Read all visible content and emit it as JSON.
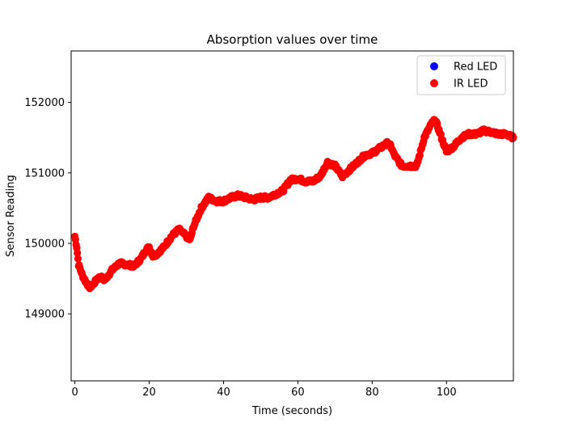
{
  "chart_data": {
    "type": "scatter",
    "title": "Absorption values over time",
    "xlabel": "Time (seconds)",
    "ylabel": "Sensor Reading",
    "xlim": [
      -1,
      118
    ],
    "ylim": [
      148050,
      152730
    ],
    "xticks": [
      0,
      20,
      40,
      60,
      80,
      100
    ],
    "yticks": [
      149000,
      150000,
      151000,
      152000
    ],
    "grid": false,
    "legend_position": "top-right",
    "series": [
      {
        "name": "Red LED",
        "color": "#0000ff",
        "x": [],
        "y": []
      },
      {
        "name": "IR LED",
        "color": "#ff0000",
        "keypoints_x": [
          0,
          0.5,
          1,
          2,
          3,
          4,
          5,
          6,
          7,
          8,
          9,
          10,
          12,
          14,
          16,
          18,
          19,
          20,
          21,
          22,
          24,
          26,
          28,
          30,
          31,
          32,
          34,
          36,
          38,
          40,
          42,
          44,
          46,
          48,
          50,
          52,
          54,
          56,
          58,
          60,
          62,
          64,
          66,
          68,
          70,
          72,
          74,
          76,
          78,
          80,
          82,
          84,
          85,
          86,
          88,
          90,
          92,
          93,
          94,
          96,
          97,
          98,
          100,
          102,
          104,
          106,
          108,
          110,
          112,
          114,
          116,
          118
        ],
        "keypoints_y": [
          150100,
          149950,
          149700,
          149550,
          149450,
          149380,
          149420,
          149500,
          149520,
          149480,
          149550,
          149620,
          149720,
          149700,
          149680,
          149800,
          149900,
          149950,
          149820,
          149850,
          149950,
          150100,
          150200,
          150100,
          150050,
          150250,
          150500,
          150650,
          150600,
          150600,
          150650,
          150680,
          150650,
          150620,
          150650,
          150650,
          150700,
          150750,
          150900,
          150920,
          150880,
          150880,
          150950,
          151150,
          151100,
          150950,
          151050,
          151150,
          151250,
          151280,
          151350,
          151420,
          151380,
          151250,
          151100,
          151100,
          151100,
          151300,
          151500,
          151700,
          151750,
          151600,
          151300,
          151380,
          151500,
          151550,
          151550,
          151600,
          151580,
          151550,
          151550,
          151500
        ]
      }
    ]
  }
}
